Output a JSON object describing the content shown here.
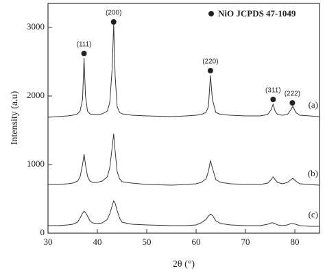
{
  "chart_data": {
    "type": "line",
    "xlabel": "2θ (°)",
    "ylabel": "Intensity (a.u)",
    "xlim": [
      30,
      85
    ],
    "ylim": [
      0,
      3350
    ],
    "xticks": [
      30,
      40,
      50,
      60,
      70,
      80
    ],
    "yticks": [
      0,
      1000,
      2000,
      3000
    ],
    "legend": "NiO JCPDS 47-1049",
    "legend_corner": "top-right",
    "x": [
      30,
      32,
      34,
      35,
      36,
      36.5,
      37,
      37.3,
      37.6,
      38,
      38.5,
      39,
      40,
      41,
      42,
      42.5,
      43,
      43.3,
      43.6,
      44,
      44.5,
      45,
      47,
      50,
      55,
      58,
      60,
      61,
      62,
      62.5,
      62.9,
      63.3,
      64,
      65,
      67,
      70,
      73,
      74.5,
      75.2,
      75.6,
      76,
      76.5,
      77.5,
      78.5,
      79.2,
      79.6,
      80.2,
      81,
      83,
      85
    ],
    "series": [
      {
        "name": "(a)",
        "color": "#333333",
        "values": [
          1690,
          1700,
          1710,
          1720,
          1740,
          1780,
          1950,
          2550,
          2000,
          1780,
          1740,
          1730,
          1730,
          1740,
          1780,
          1900,
          2400,
          3050,
          2300,
          1850,
          1760,
          1740,
          1720,
          1710,
          1700,
          1710,
          1720,
          1730,
          1760,
          1850,
          2300,
          1950,
          1760,
          1730,
          1720,
          1710,
          1710,
          1730,
          1800,
          1880,
          1780,
          1730,
          1720,
          1730,
          1800,
          1850,
          1760,
          1720,
          1710,
          1700
        ]
      },
      {
        "name": "(b)",
        "color": "#333333",
        "values": [
          710,
          710,
          720,
          730,
          760,
          820,
          1000,
          1150,
          1000,
          830,
          760,
          740,
          740,
          760,
          820,
          950,
          1250,
          1450,
          1200,
          900,
          790,
          750,
          730,
          710,
          700,
          710,
          720,
          740,
          790,
          900,
          1060,
          950,
          780,
          740,
          720,
          710,
          710,
          730,
          780,
          820,
          780,
          740,
          720,
          740,
          780,
          800,
          760,
          720,
          710,
          700
        ]
      },
      {
        "name": "(c)",
        "color": "#333333",
        "values": [
          110,
          110,
          120,
          130,
          160,
          220,
          290,
          320,
          300,
          250,
          180,
          150,
          140,
          150,
          200,
          280,
          400,
          470,
          440,
          330,
          220,
          160,
          130,
          120,
          110,
          110,
          120,
          150,
          200,
          250,
          280,
          260,
          180,
          140,
          120,
          110,
          110,
          130,
          150,
          150,
          140,
          120,
          110,
          120,
          140,
          140,
          130,
          110,
          100,
          100
        ]
      }
    ],
    "annotations": [
      {
        "label": "(111)",
        "x": 37.3,
        "y": 2620
      },
      {
        "label": "(200)",
        "x": 43.3,
        "y": 3080
      },
      {
        "label": "(220)",
        "x": 62.9,
        "y": 2370
      },
      {
        "label": "(311)",
        "x": 75.6,
        "y": 1950
      },
      {
        "label": "(222)",
        "x": 79.5,
        "y": 1900
      }
    ]
  }
}
